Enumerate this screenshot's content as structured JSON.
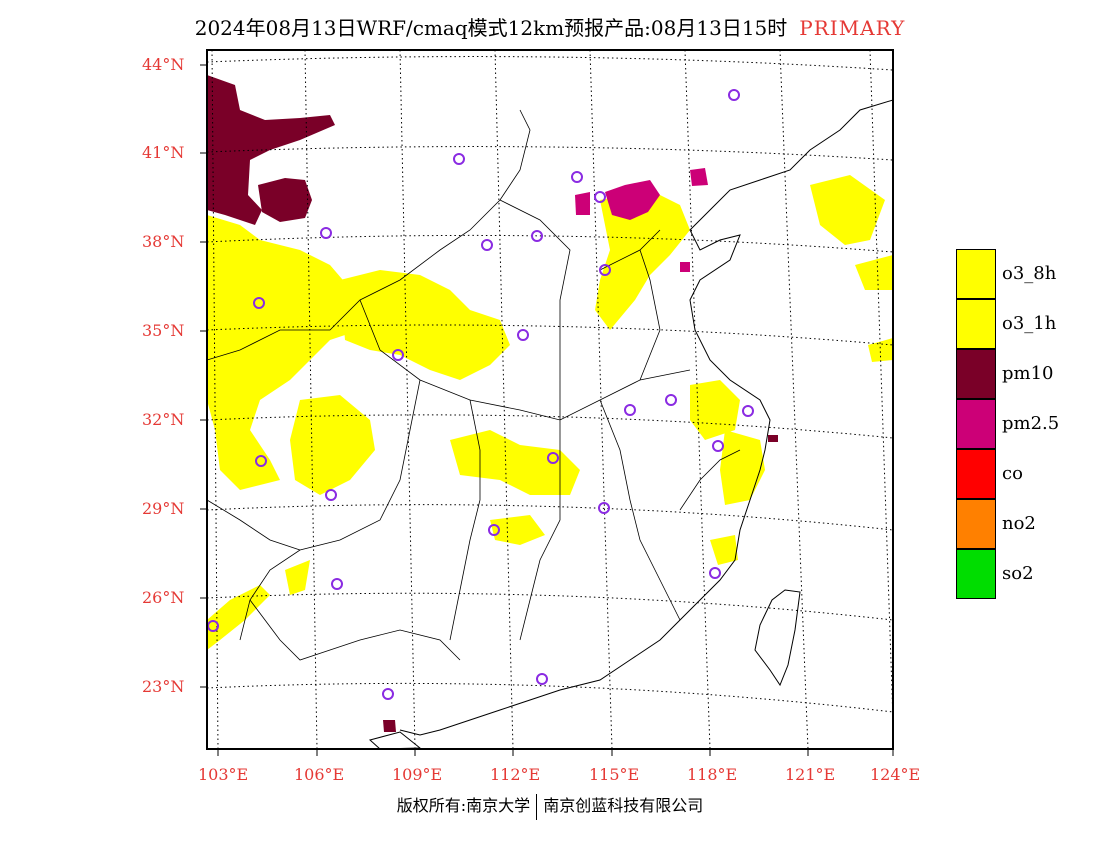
{
  "title": {
    "main": "2024年08月13日WRF/cmaq模式12km预报产品:08月13日15时",
    "tag": "PRIMARY"
  },
  "map": {
    "lat_labels": [
      "44°N",
      "41°N",
      "38°N",
      "35°N",
      "32°N",
      "29°N",
      "26°N",
      "23°N"
    ],
    "lon_labels": [
      "103°E",
      "106°E",
      "109°E",
      "112°E",
      "115°E",
      "118°E",
      "121°E",
      "124°E"
    ]
  },
  "legend": {
    "items": [
      {
        "label": "o3_8h",
        "color": "#ffff00"
      },
      {
        "label": "o3_1h",
        "color": "#ffff00"
      },
      {
        "label": "pm10",
        "color": "#7a0028"
      },
      {
        "label": "pm2.5",
        "color": "#cc0077"
      },
      {
        "label": "co",
        "color": "#ff0000"
      },
      {
        "label": "no2",
        "color": "#ff8000"
      },
      {
        "label": "so2",
        "color": "#00dd00"
      }
    ]
  },
  "footer": {
    "left": "版权所有:南京大学",
    "right": "南京创蓝科技有限公司"
  },
  "colors": {
    "label_red": "#e53935",
    "station_marker": "#8a2be2"
  }
}
